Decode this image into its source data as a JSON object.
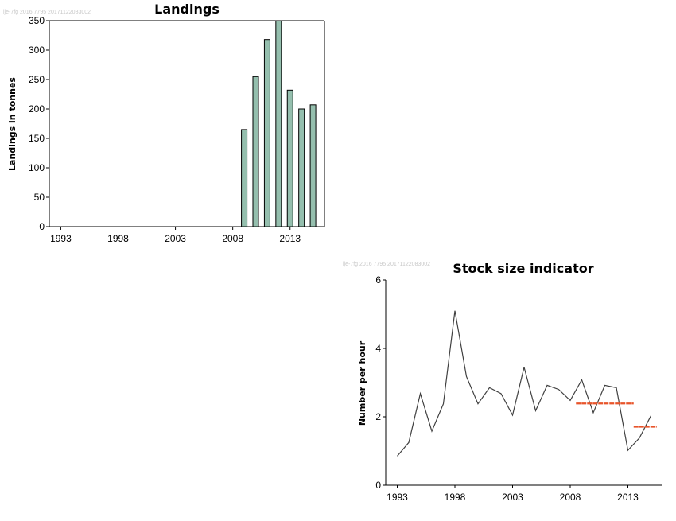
{
  "chart_data": [
    {
      "type": "bar",
      "title": "Landings",
      "ylabel": "Landings in tonnes",
      "xlabel": "",
      "stamp": "ije-7fg 2016 7795 20171122083002",
      "x": [
        2009,
        2010,
        2011,
        2012,
        2013,
        2014,
        2015
      ],
      "values": [
        165,
        255,
        318,
        350,
        232,
        200,
        207
      ],
      "xlim": [
        1992,
        2016
      ],
      "ylim": [
        0,
        350
      ],
      "xticks": [
        "1993",
        "1998",
        "2003",
        "2008",
        "2013"
      ],
      "yticks": [
        "0",
        "50",
        "100",
        "150",
        "200",
        "250",
        "300",
        "350"
      ],
      "bar_color": "#95bfae",
      "grid": false
    },
    {
      "type": "line",
      "title": "Stock size indicator",
      "ylabel": "Number per hour",
      "xlabel": "",
      "stamp": "ije-7fg 2016 7795 20171122083002",
      "x": [
        1993,
        1994,
        1995,
        1996,
        1997,
        1998,
        1999,
        2000,
        2001,
        2002,
        2003,
        2004,
        2005,
        2006,
        2007,
        2008,
        2009,
        2010,
        2011,
        2012,
        2013,
        2014,
        2015
      ],
      "series": [
        {
          "values": [
            0.85,
            1.25,
            2.68,
            1.58,
            2.38,
            5.1,
            3.18,
            2.38,
            2.85,
            2.68,
            2.05,
            3.45,
            2.18,
            2.92,
            2.8,
            2.48,
            3.08,
            2.12,
            2.92,
            2.85,
            1.02,
            1.38,
            2.03
          ],
          "color": "#404040"
        }
      ],
      "reference_lines": [
        {
          "x_range": [
            2008.5,
            2013.5
          ],
          "value": 2.39,
          "color": "#e8542a"
        },
        {
          "x_range": [
            2013.5,
            2015.5
          ],
          "value": 1.71,
          "color": "#e8542a"
        }
      ],
      "xlim": [
        1992,
        2016
      ],
      "ylim": [
        0,
        6
      ],
      "xticks": [
        "1993",
        "1998",
        "2003",
        "2008",
        "2013"
      ],
      "yticks": [
        "0",
        "2",
        "4",
        "6"
      ],
      "grid": false
    }
  ]
}
